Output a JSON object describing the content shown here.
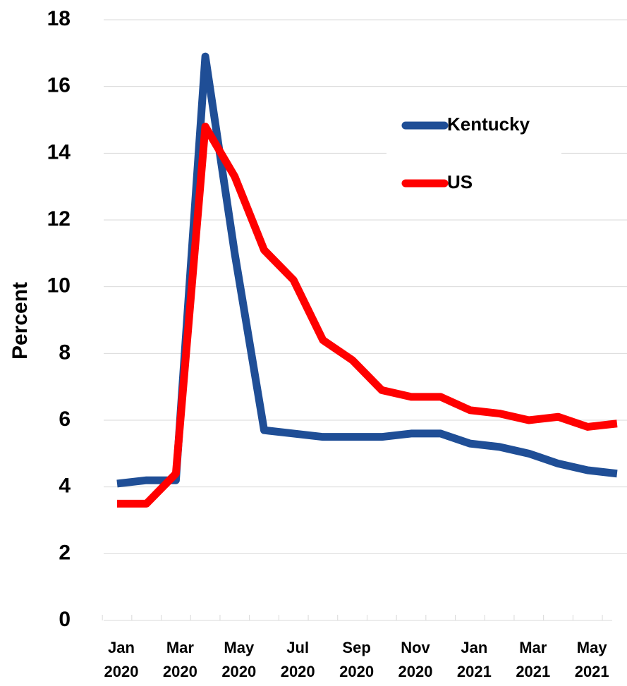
{
  "chart_data": {
    "type": "line",
    "y_label": "Percent",
    "categories": [
      "Jan 2020",
      null,
      "Mar 2020",
      null,
      "May 2020",
      null,
      "Jul 2020",
      null,
      "Sep 2020",
      null,
      "Nov 2020",
      null,
      "Jan 2021",
      null,
      "Mar 2021",
      null,
      "May 2021",
      null
    ],
    "series": [
      {
        "name": "Kentucky",
        "color": "#1f4e96",
        "values": [
          4.1,
          4.2,
          4.2,
          16.9,
          11.0,
          5.7,
          5.6,
          5.5,
          5.5,
          5.5,
          5.6,
          5.6,
          5.3,
          5.2,
          5.0,
          4.7,
          4.5,
          4.4
        ]
      },
      {
        "name": "US",
        "color": "#ff0000",
        "values": [
          3.5,
          3.5,
          4.4,
          14.8,
          13.3,
          11.1,
          10.2,
          8.4,
          7.8,
          6.9,
          6.7,
          6.7,
          6.3,
          6.2,
          6.0,
          6.1,
          5.8,
          5.9
        ]
      }
    ],
    "ylim": [
      0,
      18
    ],
    "yticks": [
      0,
      2,
      4,
      6,
      8,
      10,
      12,
      14,
      16,
      18
    ],
    "grid": true,
    "legend": "upper right"
  }
}
